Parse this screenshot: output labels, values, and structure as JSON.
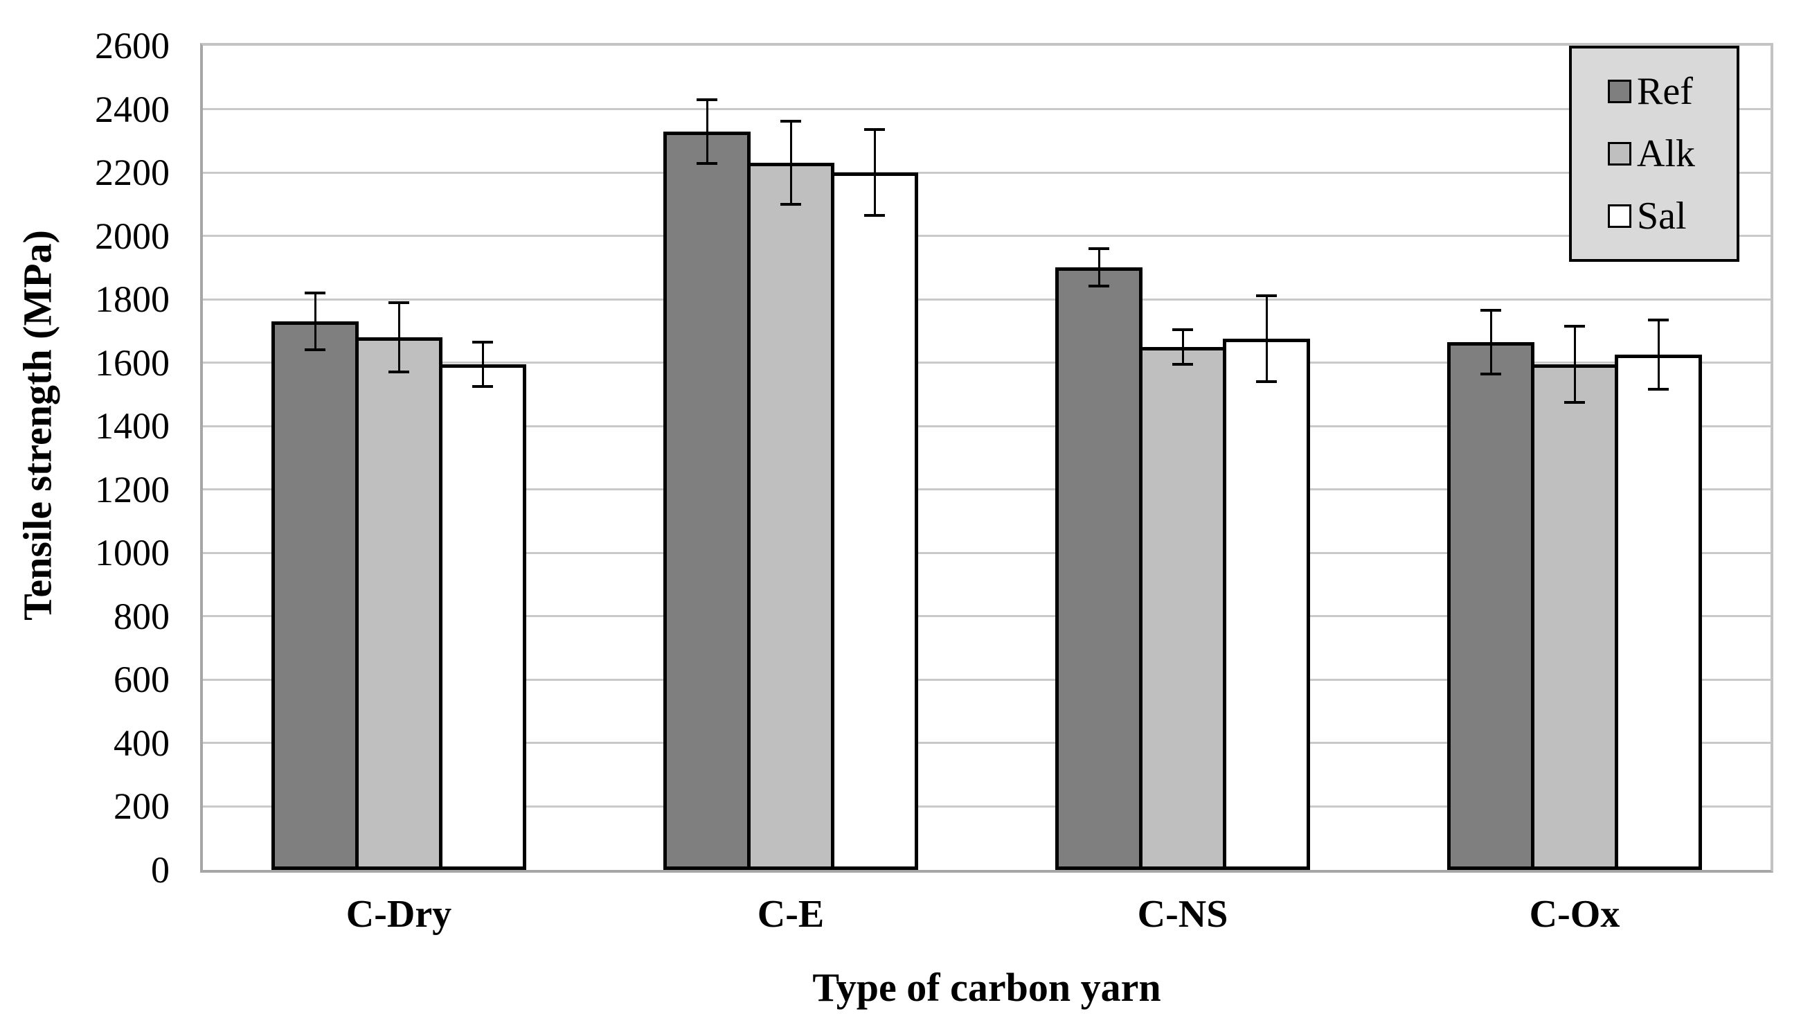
{
  "chart_data": {
    "type": "bar",
    "title": "",
    "xlabel": "Type of carbon yarn",
    "ylabel": "Tensile strength (MPa)",
    "categories": [
      "C-Dry",
      "C-E",
      "C-NS",
      "C-Ox"
    ],
    "series": [
      {
        "name": "Ref",
        "color": "#7f7f7f",
        "values": [
          1730,
          2330,
          1900,
          1665
        ],
        "errors": [
          90,
          100,
          60,
          100
        ]
      },
      {
        "name": "Alk",
        "color": "#bfbfbf",
        "values": [
          1680,
          2230,
          1650,
          1595
        ],
        "errors": [
          110,
          130,
          55,
          120
        ]
      },
      {
        "name": "Sal",
        "color": "#ffffff",
        "values": [
          1595,
          2200,
          1675,
          1625
        ],
        "errors": [
          70,
          135,
          135,
          110
        ]
      }
    ],
    "ylim": [
      0,
      2600
    ],
    "ytick_step": 200,
    "yticks": [
      0,
      200,
      400,
      600,
      800,
      1000,
      1200,
      1400,
      1600,
      1800,
      2000,
      2200,
      2400,
      2600
    ],
    "grid": true,
    "error_bars": true,
    "legend_position": "top-right",
    "legend_items": [
      "Ref",
      "Alk",
      "Sal"
    ]
  },
  "colors": {
    "ref_fill": "#7f7f7f",
    "alk_fill": "#bfbfbf",
    "sal_fill": "#ffffff",
    "bar_border": "#000000",
    "gridline": "#c9c9c9",
    "axis_line": "#a6a6a6",
    "legend_bg": "#d9d9d9",
    "background": "#ffffff"
  }
}
